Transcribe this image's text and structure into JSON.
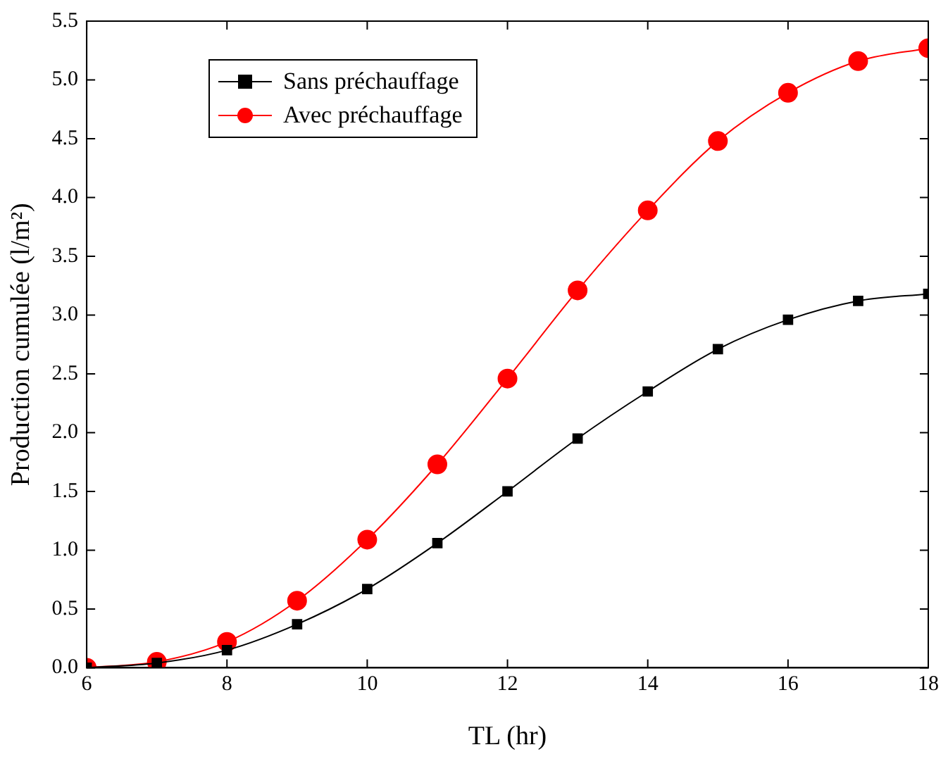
{
  "chart_data": {
    "type": "line",
    "xlabel": "TL (hr)",
    "ylabel": "Production cumulée (l/m²)",
    "x": [
      6,
      7,
      8,
      9,
      10,
      11,
      12,
      13,
      14,
      15,
      16,
      17,
      18
    ],
    "series": [
      {
        "name": "Sans préchauffage",
        "color": "#000000",
        "marker": "square",
        "values": [
          0,
          0.04,
          0.15,
          0.37,
          0.67,
          1.06,
          1.5,
          1.95,
          2.35,
          2.71,
          2.96,
          3.12,
          3.18
        ]
      },
      {
        "name": "Avec préchauffage",
        "color": "#ff0000",
        "marker": "circle",
        "values": [
          0,
          0.05,
          0.22,
          0.57,
          1.09,
          1.73,
          2.46,
          3.21,
          3.89,
          4.48,
          4.89,
          5.16,
          5.27
        ]
      }
    ],
    "xlim": [
      6,
      18
    ],
    "xticks": [
      6,
      8,
      10,
      12,
      14,
      16,
      18
    ],
    "ylim": [
      0,
      5.5
    ],
    "yticks": [
      {
        "value": 0,
        "label": "0.0"
      },
      {
        "value": 0.5,
        "label": "0.5"
      },
      {
        "value": 1,
        "label": "1.0"
      },
      {
        "value": 1.5,
        "label": "1.5"
      },
      {
        "value": 2,
        "label": "2.0"
      },
      {
        "value": 2.5,
        "label": "2.5"
      },
      {
        "value": 3,
        "label": "3.0"
      },
      {
        "value": 3.5,
        "label": "3.5"
      },
      {
        "value": 4,
        "label": "4.0"
      },
      {
        "value": 4.5,
        "label": "4.5"
      },
      {
        "value": 5,
        "label": "5.0"
      },
      {
        "value": 5.5,
        "label": "5.5"
      }
    ],
    "grid": false,
    "legend": "top left",
    "line_style": "solid"
  }
}
